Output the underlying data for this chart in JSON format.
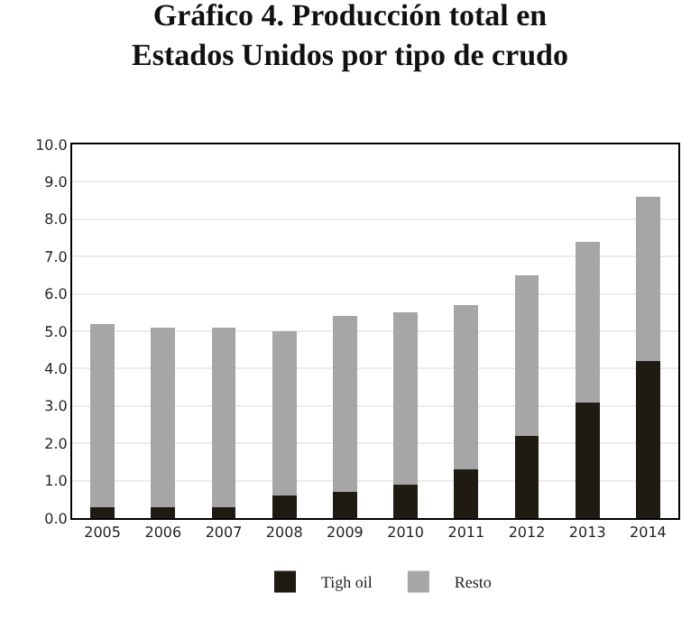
{
  "chart_data": {
    "type": "bar",
    "title": "Gráfico 4. Producción total en\nEstados Unidos por tipo de crudo",
    "stacked": true,
    "categories": [
      "2005",
      "2006",
      "2007",
      "2008",
      "2009",
      "2010",
      "2011",
      "2012",
      "2013",
      "2014"
    ],
    "series": [
      {
        "name": "Tigh oil",
        "color": "#1f1a12",
        "values": [
          0.3,
          0.3,
          0.3,
          0.6,
          0.7,
          0.9,
          1.3,
          2.2,
          3.1,
          4.2
        ]
      },
      {
        "name": "Resto",
        "color": "#a6a6a6",
        "values": [
          4.9,
          4.8,
          4.8,
          4.4,
          4.7,
          4.6,
          4.4,
          4.3,
          4.3,
          4.4
        ]
      }
    ],
    "ylim": [
      0,
      10
    ],
    "yticks": [
      {
        "value": 0,
        "label": "0.0"
      },
      {
        "value": 1,
        "label": "1.0"
      },
      {
        "value": 2,
        "label": "2.0"
      },
      {
        "value": 3,
        "label": "3.0"
      },
      {
        "value": 4,
        "label": "4.0"
      },
      {
        "value": 5,
        "label": "5.0"
      },
      {
        "value": 6,
        "label": "6.0"
      },
      {
        "value": 7,
        "label": "7.0"
      },
      {
        "value": 8,
        "label": "8.0"
      },
      {
        "value": 9,
        "label": "9.0"
      },
      {
        "value": 10,
        "label": "10.0"
      }
    ],
    "grid": "y",
    "legend": "bottom"
  }
}
